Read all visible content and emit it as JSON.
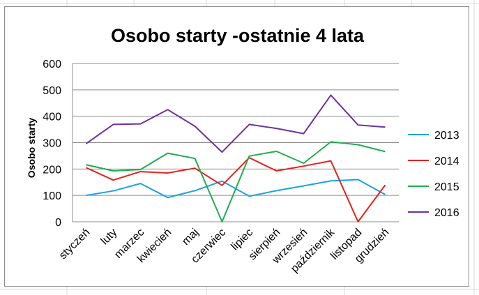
{
  "chart_data": {
    "type": "line",
    "title": "Osobo starty -ostatnie 4 lata",
    "ylabel": "Osobo starty",
    "xlabel": "",
    "ylim": [
      0,
      600
    ],
    "yticks": [
      0,
      100,
      200,
      300,
      400,
      500,
      600
    ],
    "grid": "horizontal",
    "legend": "right",
    "categories": [
      "styczeń",
      "luty",
      "marzec",
      "kwiecień",
      "maj",
      "czerwiec",
      "lipiec",
      "sierpień",
      "wrzesień",
      "październik",
      "listopad",
      "grudzień"
    ],
    "series": [
      {
        "name": "2013",
        "color": "#1aa3e8",
        "values": [
          100,
          117,
          145,
          92,
          118,
          154,
          97,
          118,
          136,
          155,
          160,
          103
        ]
      },
      {
        "name": "2014",
        "color": "#e8211a",
        "values": [
          205,
          158,
          190,
          185,
          203,
          138,
          243,
          193,
          211,
          231,
          0,
          139
        ]
      },
      {
        "name": "2015",
        "color": "#1fae50",
        "values": [
          216,
          193,
          198,
          260,
          240,
          0,
          249,
          267,
          222,
          303,
          292,
          266
        ]
      },
      {
        "name": "2016",
        "color": "#7030a0",
        "values": [
          296,
          369,
          371,
          425,
          362,
          264,
          369,
          354,
          334,
          480,
          367,
          359
        ]
      }
    ]
  }
}
